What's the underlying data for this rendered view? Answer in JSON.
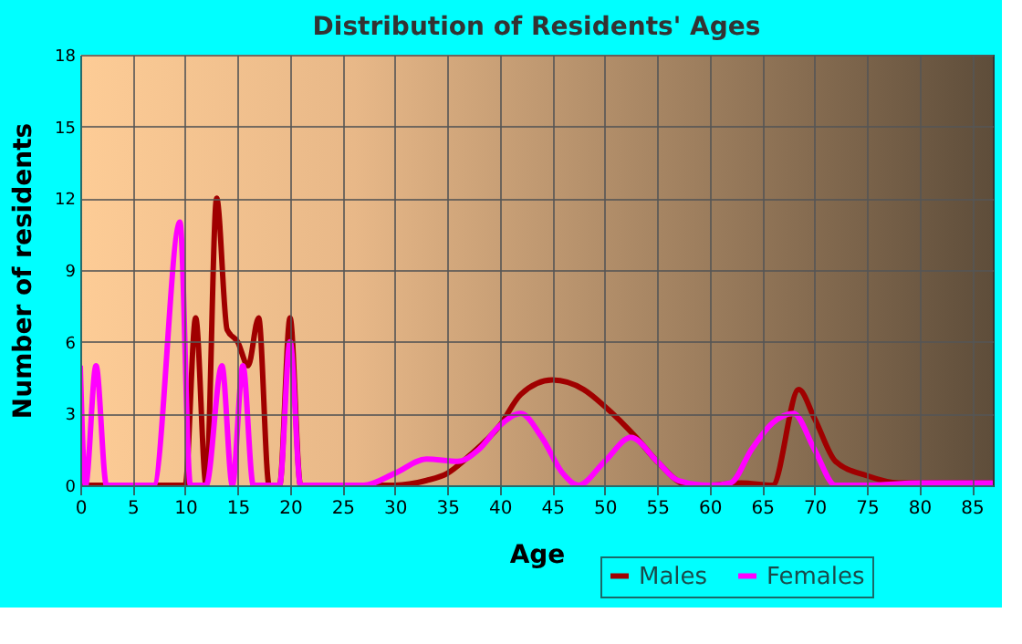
{
  "chart_data": {
    "type": "line",
    "title": "Distribution of Residents' Ages",
    "xlabel": "Age",
    "ylabel": "Number of residents",
    "xlim": [
      0,
      87
    ],
    "xticks": [
      0,
      5,
      10,
      15,
      20,
      25,
      30,
      35,
      40,
      45,
      50,
      55,
      60,
      65,
      70,
      75,
      80,
      85
    ],
    "ylim": [
      0,
      18
    ],
    "yticks": [
      0,
      3,
      6,
      9,
      12,
      15,
      18
    ],
    "grid": true,
    "legend": "bottom right",
    "marker": "none",
    "line_style": "solid",
    "series": [
      {
        "name": "Males",
        "color": "#a00000",
        "x": [
          0,
          5,
          10,
          11,
          12,
          13,
          14,
          15,
          16,
          17,
          18,
          19,
          20,
          21,
          25,
          30,
          33,
          35,
          37,
          40,
          42,
          45,
          48,
          50,
          53,
          55,
          58,
          60,
          63,
          66,
          68.5,
          70,
          72,
          75,
          78,
          80,
          87
        ],
        "values": [
          0,
          0,
          0,
          7,
          0,
          12,
          6.5,
          6,
          5,
          7,
          0,
          0,
          7,
          0,
          0,
          0,
          0.2,
          0.5,
          1.2,
          2.5,
          3.8,
          4.4,
          4,
          3.3,
          2,
          1,
          0,
          0,
          0.1,
          0,
          4,
          2.8,
          1,
          0.4,
          0.1,
          0.1,
          0.1
        ]
      },
      {
        "name": "Females",
        "color": "#ff00ff",
        "x": [
          0,
          0.5,
          1.5,
          2.5,
          5,
          7,
          9.5,
          10.5,
          12,
          13.5,
          14.5,
          15.5,
          16.5,
          19,
          20,
          21,
          25,
          27,
          30,
          33,
          36,
          38,
          40,
          42,
          44,
          46,
          47.5,
          50,
          52.5,
          55,
          57,
          60,
          62,
          64,
          66,
          68,
          70,
          72,
          75,
          80,
          87
        ],
        "values": [
          5,
          0,
          5,
          0,
          0,
          0,
          11,
          0,
          0,
          5,
          0,
          5,
          0,
          0,
          6,
          0,
          0,
          0,
          0.5,
          1.1,
          1,
          1.5,
          2.5,
          3,
          2,
          0.5,
          0,
          1,
          2,
          1,
          0.2,
          0,
          0.1,
          1.5,
          2.6,
          3,
          1.5,
          0,
          0,
          0.1,
          0.1
        ]
      }
    ]
  }
}
